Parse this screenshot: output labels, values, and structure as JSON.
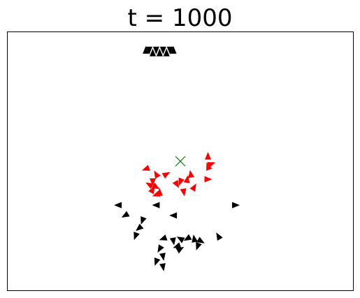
{
  "chart_data": {
    "type": "scatter",
    "title": "t = 1000",
    "xlabel": "",
    "ylabel": "",
    "xlim": [
      0,
      1
    ],
    "ylim": [
      0,
      1
    ],
    "grid": false,
    "axis_ticks": false,
    "target": {
      "marker": "x",
      "color": "#008000",
      "x": 0.5,
      "y": 0.5
    },
    "series": [
      {
        "marker": "triangle",
        "color": "#ff0000",
        "points": [
          {
            "x": 0.4,
            "y": 0.47,
            "angle": 200
          },
          {
            "x": 0.43,
            "y": 0.45,
            "angle": 120
          },
          {
            "x": 0.46,
            "y": 0.45,
            "angle": 30
          },
          {
            "x": 0.42,
            "y": 0.42,
            "angle": 270
          },
          {
            "x": 0.41,
            "y": 0.41,
            "angle": 150
          },
          {
            "x": 0.43,
            "y": 0.4,
            "angle": 330
          },
          {
            "x": 0.42,
            "y": 0.39,
            "angle": 60
          },
          {
            "x": 0.44,
            "y": 0.38,
            "angle": 90
          },
          {
            "x": 0.43,
            "y": 0.37,
            "angle": 200
          },
          {
            "x": 0.5,
            "y": 0.42,
            "angle": 250
          },
          {
            "x": 0.49,
            "y": 0.41,
            "angle": 300
          },
          {
            "x": 0.51,
            "y": 0.38,
            "angle": 280
          },
          {
            "x": 0.53,
            "y": 0.45,
            "angle": 100
          },
          {
            "x": 0.52,
            "y": 0.43,
            "angle": 80
          },
          {
            "x": 0.54,
            "y": 0.4,
            "angle": 60
          },
          {
            "x": 0.58,
            "y": 0.52,
            "angle": 90
          },
          {
            "x": 0.59,
            "y": 0.49,
            "angle": 20
          },
          {
            "x": 0.58,
            "y": 0.48,
            "angle": 110
          },
          {
            "x": 0.58,
            "y": 0.43,
            "angle": 0
          }
        ]
      },
      {
        "marker": "triangle",
        "color": "#000000",
        "points": [
          {
            "x": 0.4,
            "y": 0.93,
            "angle": 90
          },
          {
            "x": 0.41,
            "y": 0.93,
            "angle": 270
          },
          {
            "x": 0.42,
            "y": 0.92,
            "angle": 90
          },
          {
            "x": 0.43,
            "y": 0.93,
            "angle": 270
          },
          {
            "x": 0.44,
            "y": 0.92,
            "angle": 90
          },
          {
            "x": 0.45,
            "y": 0.93,
            "angle": 270
          },
          {
            "x": 0.46,
            "y": 0.92,
            "angle": 90
          },
          {
            "x": 0.47,
            "y": 0.93,
            "angle": 270
          },
          {
            "x": 0.48,
            "y": 0.93,
            "angle": 90
          },
          {
            "x": 0.32,
            "y": 0.33,
            "angle": 180
          },
          {
            "x": 0.34,
            "y": 0.29,
            "angle": 210
          },
          {
            "x": 0.43,
            "y": 0.33,
            "angle": 180
          },
          {
            "x": 0.48,
            "y": 0.29,
            "angle": 180
          },
          {
            "x": 0.66,
            "y": 0.33,
            "angle": 0
          },
          {
            "x": 0.39,
            "y": 0.27,
            "angle": 250
          },
          {
            "x": 0.38,
            "y": 0.24,
            "angle": 220
          },
          {
            "x": 0.37,
            "y": 0.21,
            "angle": 250
          },
          {
            "x": 0.45,
            "y": 0.2,
            "angle": 200
          },
          {
            "x": 0.48,
            "y": 0.19,
            "angle": 280
          },
          {
            "x": 0.5,
            "y": 0.2,
            "angle": 150
          },
          {
            "x": 0.52,
            "y": 0.2,
            "angle": 210
          },
          {
            "x": 0.49,
            "y": 0.17,
            "angle": 200
          },
          {
            "x": 0.5,
            "y": 0.16,
            "angle": 30
          },
          {
            "x": 0.44,
            "y": 0.16,
            "angle": 240
          },
          {
            "x": 0.45,
            "y": 0.13,
            "angle": 280
          },
          {
            "x": 0.43,
            "y": 0.11,
            "angle": 250
          },
          {
            "x": 0.45,
            "y": 0.09,
            "angle": 280
          },
          {
            "x": 0.54,
            "y": 0.2,
            "angle": 100
          },
          {
            "x": 0.56,
            "y": 0.19,
            "angle": 330
          },
          {
            "x": 0.55,
            "y": 0.17,
            "angle": 250
          },
          {
            "x": 0.61,
            "y": 0.21,
            "angle": 120
          }
        ]
      }
    ]
  }
}
